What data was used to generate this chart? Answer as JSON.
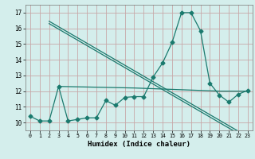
{
  "line1_x": [
    2,
    4,
    6,
    8,
    10,
    12,
    14,
    16,
    18,
    20,
    22,
    23
  ],
  "line1_y": [
    16.3,
    15.6,
    14.9,
    14.2,
    13.5,
    12.8,
    12.1,
    11.4,
    10.7,
    10.0,
    9.3,
    8.95
  ],
  "line1b_y": [
    16.45,
    15.75,
    15.05,
    14.35,
    13.65,
    12.95,
    12.25,
    11.55,
    10.85,
    10.15,
    9.45,
    9.1
  ],
  "line2_x": [
    0,
    1,
    2,
    3,
    4,
    5,
    6,
    7,
    8,
    9,
    10,
    11,
    12,
    13,
    14,
    15,
    16,
    17,
    18,
    19,
    20,
    21,
    22,
    23
  ],
  "line2_y": [
    10.4,
    10.1,
    10.1,
    12.3,
    10.1,
    10.2,
    10.3,
    10.3,
    11.4,
    11.1,
    11.6,
    11.65,
    11.65,
    12.9,
    13.8,
    15.1,
    17.0,
    17.0,
    15.85,
    12.5,
    11.75,
    11.3,
    11.8,
    12.05
  ],
  "line3_x": [
    3,
    11,
    20,
    23
  ],
  "line3_y": [
    12.3,
    12.2,
    12.0,
    12.0
  ],
  "color": "#1a7a6e",
  "bg_color": "#d4eeec",
  "grid_color": "#c8a8a8",
  "xlabel": "Humidex (Indice chaleur)",
  "xlim": [
    -0.5,
    23.5
  ],
  "ylim": [
    9.5,
    17.5
  ],
  "yticks": [
    10,
    11,
    12,
    13,
    14,
    15,
    16,
    17
  ],
  "xticks": [
    0,
    1,
    2,
    3,
    4,
    5,
    6,
    7,
    8,
    9,
    10,
    11,
    12,
    13,
    14,
    15,
    16,
    17,
    18,
    19,
    20,
    21,
    22,
    23
  ],
  "marker": "D",
  "marker_size": 2.5,
  "line_width": 0.9
}
